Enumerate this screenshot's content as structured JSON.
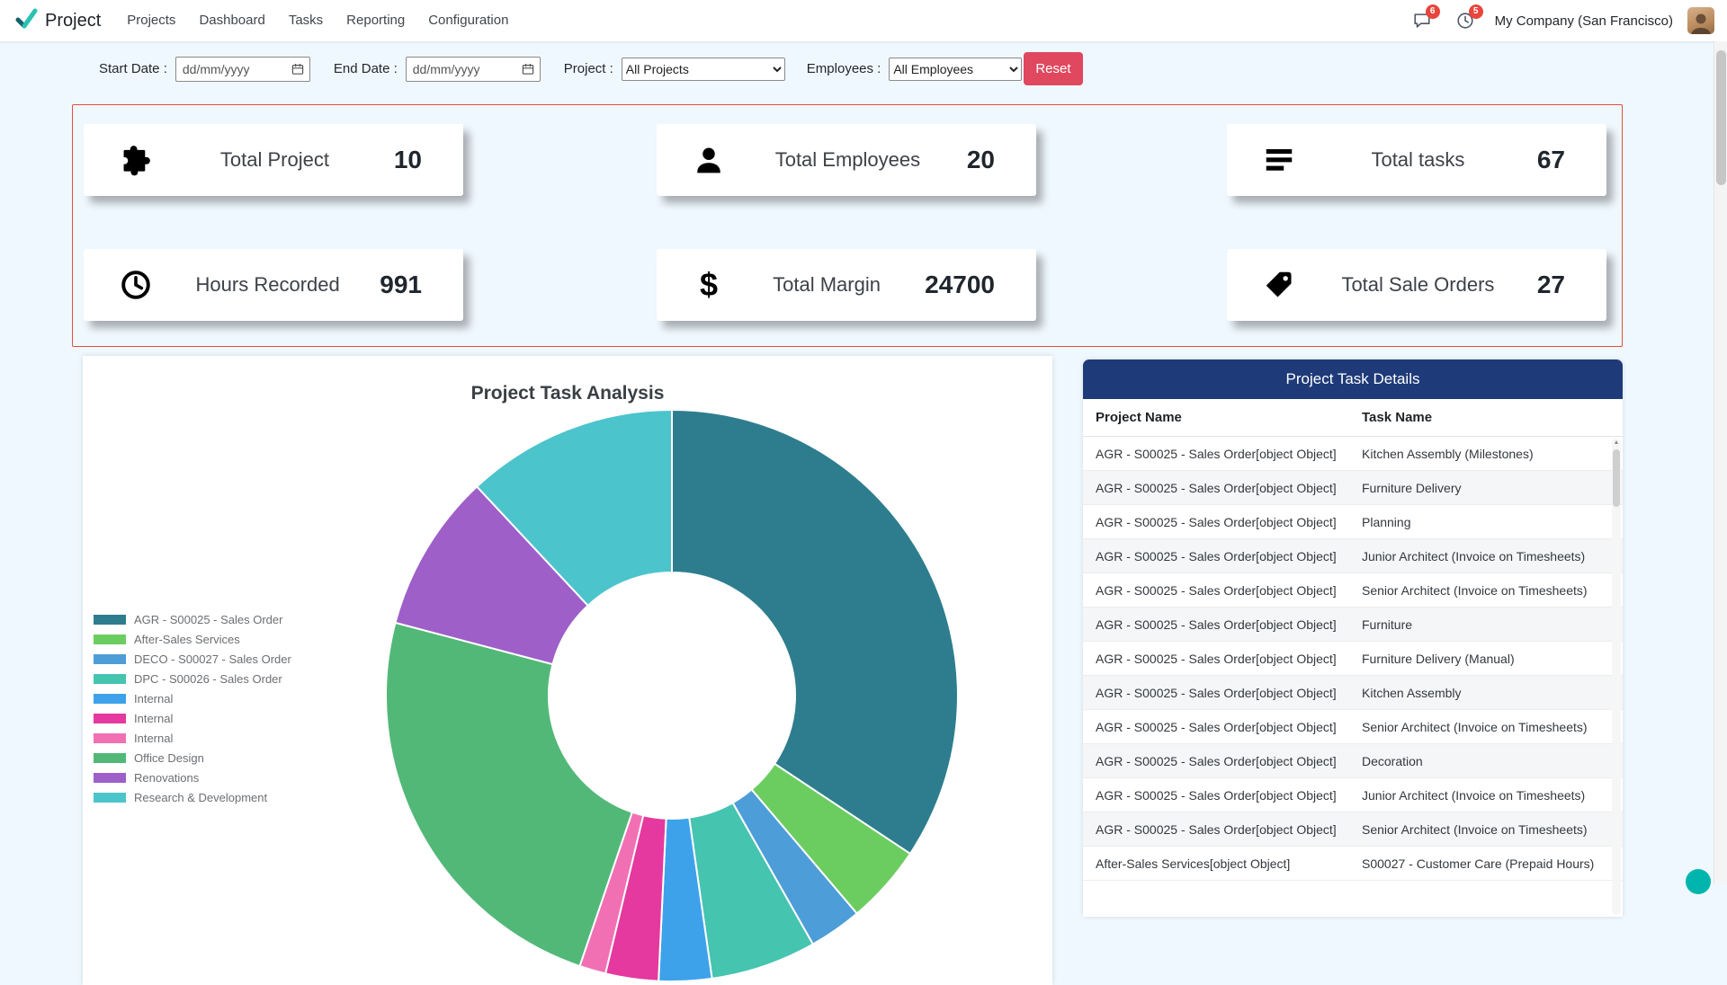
{
  "nav": {
    "brand": "Project",
    "items": [
      "Projects",
      "Dashboard",
      "Tasks",
      "Reporting",
      "Configuration"
    ],
    "messages_badge": "6",
    "activities_badge": "5",
    "company": "My Company (San Francisco)"
  },
  "filters": {
    "start_date_label": "Start Date :",
    "end_date_label": "End Date :",
    "date_placeholder": "dd/mm/yyyy",
    "project_label": "Project :",
    "project_value": "All Projects",
    "employees_label": "Employees :",
    "employees_value": "All Employees",
    "reset_label": "Reset"
  },
  "kpis": [
    {
      "icon": "puzzle-icon",
      "label": "Total Project",
      "value": "10"
    },
    {
      "icon": "user-icon",
      "label": "Total Employees",
      "value": "20"
    },
    {
      "icon": "list-icon",
      "label": "Total tasks",
      "value": "67"
    },
    {
      "icon": "clock-icon",
      "label": "Hours Recorded",
      "value": "991"
    },
    {
      "icon": "dollar-icon",
      "label": "Total Margin",
      "value": "24700"
    },
    {
      "icon": "tag-icon",
      "label": "Total Sale Orders",
      "value": "27"
    }
  ],
  "chart_data": {
    "type": "pie",
    "subtype": "doughnut",
    "title": "Project Task Analysis",
    "legend_position": "left",
    "hole_ratio": 0.43,
    "labels": [
      "AGR - S00025 - Sales Order",
      "After-Sales Services",
      "DECO - S00027 - Sales Order",
      "DPC - S00026 - Sales Order",
      "Internal",
      "Internal",
      "Internal",
      "Office Design",
      "Renovations",
      "Research & Development"
    ],
    "values": [
      23,
      3,
      2,
      4,
      2,
      2,
      1,
      16,
      6,
      8
    ],
    "total_tasks": 67,
    "colors": [
      "#2e7d8e",
      "#6bcd5f",
      "#4d9dd8",
      "#45c4b0",
      "#3da2ea",
      "#e5399f",
      "#f170b4",
      "#52b878",
      "#9e5fc9",
      "#4cc4cc"
    ]
  },
  "task_table": {
    "title": "Project Task Details",
    "columns": [
      "Project Name",
      "Task Name"
    ],
    "rows": [
      [
        "AGR - S00025 - Sales Order[object Object]",
        "Kitchen Assembly (Milestones)"
      ],
      [
        "AGR - S00025 - Sales Order[object Object]",
        "Furniture Delivery"
      ],
      [
        "AGR - S00025 - Sales Order[object Object]",
        "Planning"
      ],
      [
        "AGR - S00025 - Sales Order[object Object]",
        "Junior Architect (Invoice on Timesheets)"
      ],
      [
        "AGR - S00025 - Sales Order[object Object]",
        "Senior Architect (Invoice on Timesheets)"
      ],
      [
        "AGR - S00025 - Sales Order[object Object]",
        "Furniture"
      ],
      [
        "AGR - S00025 - Sales Order[object Object]",
        "Furniture Delivery (Manual)"
      ],
      [
        "AGR - S00025 - Sales Order[object Object]",
        "Kitchen Assembly"
      ],
      [
        "AGR - S00025 - Sales Order[object Object]",
        "Senior Architect (Invoice on Timesheets)"
      ],
      [
        "AGR - S00025 - Sales Order[object Object]",
        "Decoration"
      ],
      [
        "AGR - S00025 - Sales Order[object Object]",
        "Junior Architect (Invoice on Timesheets)"
      ],
      [
        "AGR - S00025 - Sales Order[object Object]",
        "Senior Architect (Invoice on Timesheets)"
      ],
      [
        "After-Sales Services[object Object]",
        "S00027 - Customer Care (Prepaid Hours)"
      ]
    ]
  },
  "colors": {
    "reset_button": "#e0485f",
    "kpi_border": "#e74c3c",
    "table_header_bg": "#1e3a78",
    "badge_red": "#e8453c",
    "chat_bubble_teal": "#00b5ad",
    "page_bg": "#f0f8ff"
  }
}
